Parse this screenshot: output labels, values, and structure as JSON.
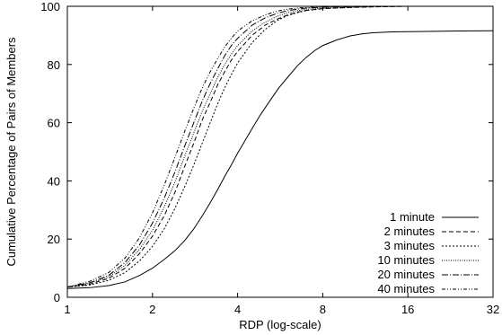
{
  "chart_data": {
    "type": "line",
    "xlabel": "RDP (log-scale)",
    "ylabel": "Cumulative Percentage of Pairs of Members",
    "x_scale": "log2",
    "xlim": [
      1,
      32
    ],
    "ylim": [
      0,
      100
    ],
    "x_ticks": [
      1,
      2,
      4,
      8,
      16,
      32
    ],
    "x_tick_labels": [
      "1",
      "2",
      "4",
      "8",
      "16",
      "32"
    ],
    "y_ticks": [
      0,
      20,
      40,
      60,
      80,
      100
    ],
    "y_tick_labels": [
      "0",
      "20",
      "40",
      "60",
      "80",
      "100"
    ],
    "grid": false,
    "legend_position": "bottom-right",
    "series": [
      {
        "name": "1 minute",
        "dash": "solid",
        "x": [
          1,
          1.2,
          1.4,
          1.6,
          1.8,
          2,
          2.2,
          2.4,
          2.6,
          2.8,
          3,
          3.2,
          3.4,
          3.6,
          3.8,
          4,
          4.2,
          4.5,
          4.8,
          5.2,
          5.6,
          6,
          6.5,
          7,
          7.5,
          8,
          9,
          10,
          11,
          12,
          14,
          16,
          20,
          24,
          32
        ],
        "y": [
          3,
          3.3,
          4,
          5.3,
          7.5,
          10,
          13,
          16,
          19.5,
          23.5,
          28,
          32.5,
          37,
          41.5,
          45.5,
          49.5,
          53,
          58,
          62.5,
          67.5,
          72,
          75.5,
          79.5,
          82.5,
          84.8,
          86.5,
          88.5,
          89.8,
          90.5,
          90.9,
          91.2,
          91.3,
          91.4,
          91.5,
          91.6
        ]
      },
      {
        "name": "2 minutes",
        "dash": "5,3",
        "x": [
          1,
          1.2,
          1.4,
          1.6,
          1.8,
          2,
          2.2,
          2.4,
          2.6,
          2.8,
          3,
          3.2,
          3.4,
          3.6,
          3.8,
          4,
          4.5,
          5,
          5.5,
          6,
          6.5,
          7,
          8,
          10,
          12,
          16
        ],
        "y": [
          3.5,
          4.5,
          6.5,
          10,
          15,
          21,
          28,
          36,
          45,
          53,
          61,
          67,
          73,
          77.5,
          81.5,
          84.5,
          90,
          93.5,
          95.5,
          97,
          98,
          98.6,
          99.2,
          99.6,
          99.8,
          100
        ]
      },
      {
        "name": "3 minutes",
        "dash": "2,2",
        "x": [
          1,
          1.2,
          1.4,
          1.6,
          1.8,
          2,
          2.2,
          2.4,
          2.6,
          2.8,
          3,
          3.2,
          3.4,
          3.6,
          3.8,
          4,
          4.5,
          5,
          5.5,
          6,
          6.5,
          7,
          8,
          10,
          12,
          16
        ],
        "y": [
          3.5,
          4.2,
          5.8,
          8.5,
          12.5,
          17.5,
          23.5,
          30.5,
          38,
          45.5,
          53,
          60,
          66.5,
          72,
          76.5,
          80.5,
          87.5,
          92,
          95,
          96.8,
          97.8,
          98.5,
          99.2,
          99.6,
          99.8,
          100
        ]
      },
      {
        "name": "10 minutes",
        "dash": "1,1.5",
        "x": [
          1,
          1.2,
          1.4,
          1.6,
          1.8,
          2,
          2.2,
          2.4,
          2.6,
          2.8,
          3,
          3.2,
          3.4,
          3.6,
          3.8,
          4,
          4.5,
          5,
          5.5,
          6,
          6.5,
          7,
          8,
          10,
          12,
          16
        ],
        "y": [
          3.5,
          4.8,
          7,
          11,
          16.5,
          23,
          31,
          39.5,
          48.5,
          56.5,
          64,
          70,
          75.5,
          80,
          83.5,
          86.5,
          91.5,
          94.5,
          96.5,
          97.8,
          98.5,
          99,
          99.4,
          99.7,
          99.9,
          100
        ]
      },
      {
        "name": "20 minutes",
        "dash": "7,2,1,2",
        "x": [
          1,
          1.2,
          1.4,
          1.6,
          1.8,
          2,
          2.2,
          2.4,
          2.6,
          2.8,
          3,
          3.2,
          3.4,
          3.6,
          3.8,
          4,
          4.5,
          5,
          5.5,
          6,
          6.5,
          7,
          8,
          10,
          12,
          16
        ],
        "y": [
          3.5,
          5,
          7.5,
          12,
          18,
          25.5,
          34,
          43,
          52,
          60,
          67.5,
          73.5,
          78.5,
          83,
          86.5,
          89,
          93.5,
          96,
          97.5,
          98.5,
          99,
          99.4,
          99.7,
          99.9,
          100,
          100
        ]
      },
      {
        "name": "40 minutes",
        "dash": "4,2,1,2,1,2",
        "x": [
          1,
          1.2,
          1.4,
          1.6,
          1.8,
          2,
          2.2,
          2.4,
          2.6,
          2.8,
          3,
          3.2,
          3.4,
          3.6,
          3.8,
          4,
          4.5,
          5,
          5.5,
          6,
          6.5,
          7,
          8,
          10,
          12,
          16
        ],
        "y": [
          3.5,
          5.5,
          8.5,
          13.5,
          20.5,
          29,
          38.5,
          48,
          57,
          65,
          72,
          77.5,
          82,
          86,
          89,
          91.5,
          95,
          97,
          98.3,
          99,
          99.4,
          99.6,
          99.8,
          99.9,
          100,
          100
        ]
      }
    ]
  }
}
